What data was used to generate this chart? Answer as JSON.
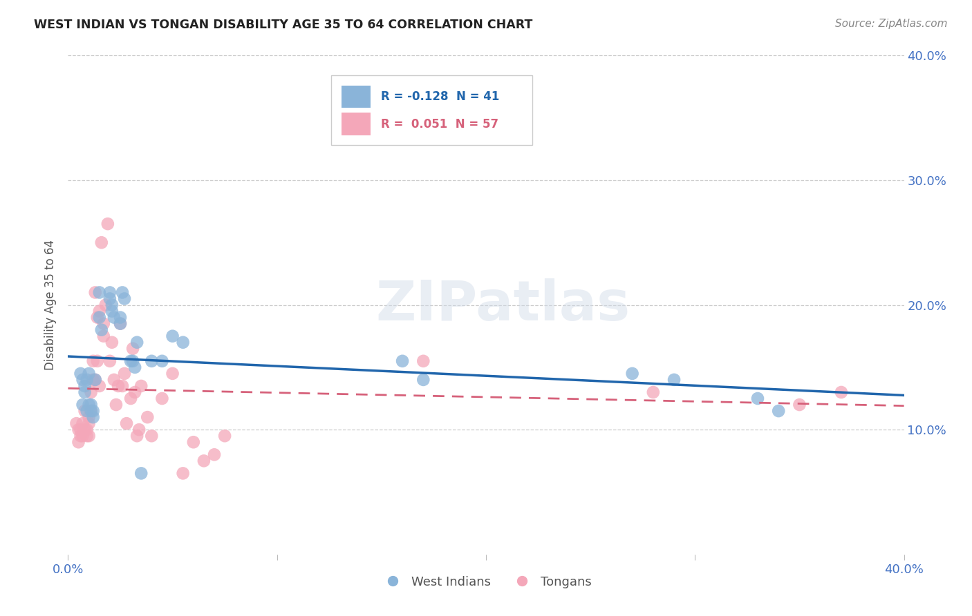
{
  "title": "WEST INDIAN VS TONGAN DISABILITY AGE 35 TO 64 CORRELATION CHART",
  "source": "Source: ZipAtlas.com",
  "ylabel": "Disability Age 35 to 64",
  "xlim": [
    0.0,
    0.4
  ],
  "ylim": [
    0.0,
    0.4
  ],
  "blue_color": "#8ab4d9",
  "pink_color": "#f4a7b9",
  "blue_line_color": "#2166ac",
  "pink_line_color": "#d6617a",
  "R_blue": -0.128,
  "N_blue": 41,
  "R_pink": 0.051,
  "N_pink": 57,
  "blue_x": [
    0.006,
    0.007,
    0.007,
    0.008,
    0.008,
    0.009,
    0.009,
    0.01,
    0.01,
    0.011,
    0.011,
    0.012,
    0.012,
    0.013,
    0.015,
    0.015,
    0.016,
    0.02,
    0.02,
    0.021,
    0.021,
    0.022,
    0.025,
    0.025,
    0.026,
    0.027,
    0.03,
    0.031,
    0.032,
    0.033,
    0.035,
    0.04,
    0.045,
    0.05,
    0.055,
    0.16,
    0.17,
    0.27,
    0.29,
    0.33,
    0.34
  ],
  "blue_y": [
    0.145,
    0.12,
    0.14,
    0.13,
    0.135,
    0.115,
    0.14,
    0.12,
    0.145,
    0.115,
    0.12,
    0.11,
    0.115,
    0.14,
    0.21,
    0.19,
    0.18,
    0.21,
    0.205,
    0.2,
    0.195,
    0.19,
    0.19,
    0.185,
    0.21,
    0.205,
    0.155,
    0.155,
    0.15,
    0.17,
    0.065,
    0.155,
    0.155,
    0.175,
    0.17,
    0.155,
    0.14,
    0.145,
    0.14,
    0.125,
    0.115
  ],
  "pink_x": [
    0.004,
    0.005,
    0.005,
    0.006,
    0.006,
    0.007,
    0.007,
    0.008,
    0.008,
    0.009,
    0.009,
    0.01,
    0.01,
    0.01,
    0.011,
    0.011,
    0.012,
    0.012,
    0.013,
    0.013,
    0.014,
    0.014,
    0.015,
    0.015,
    0.016,
    0.017,
    0.017,
    0.018,
    0.019,
    0.02,
    0.021,
    0.022,
    0.023,
    0.024,
    0.025,
    0.026,
    0.027,
    0.028,
    0.03,
    0.031,
    0.032,
    0.033,
    0.034,
    0.035,
    0.038,
    0.04,
    0.045,
    0.05,
    0.055,
    0.06,
    0.065,
    0.07,
    0.075,
    0.17,
    0.28,
    0.35,
    0.37
  ],
  "pink_y": [
    0.105,
    0.09,
    0.1,
    0.1,
    0.095,
    0.105,
    0.095,
    0.115,
    0.1,
    0.1,
    0.095,
    0.095,
    0.105,
    0.11,
    0.13,
    0.115,
    0.155,
    0.14,
    0.14,
    0.21,
    0.155,
    0.19,
    0.135,
    0.195,
    0.25,
    0.185,
    0.175,
    0.2,
    0.265,
    0.155,
    0.17,
    0.14,
    0.12,
    0.135,
    0.185,
    0.135,
    0.145,
    0.105,
    0.125,
    0.165,
    0.13,
    0.095,
    0.1,
    0.135,
    0.11,
    0.095,
    0.125,
    0.145,
    0.065,
    0.09,
    0.075,
    0.08,
    0.095,
    0.155,
    0.13,
    0.12,
    0.13
  ]
}
